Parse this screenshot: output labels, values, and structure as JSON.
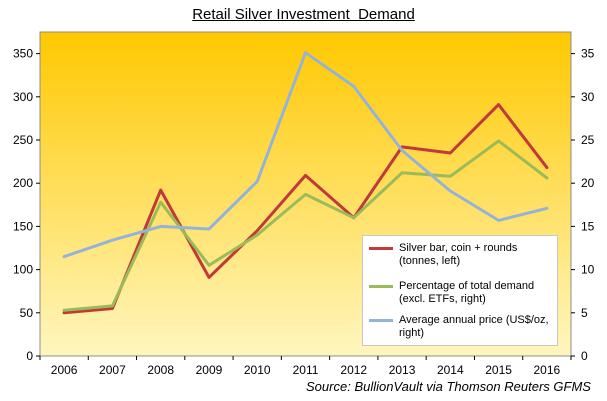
{
  "source": {
    "label": "Source:",
    "text": "BullionVault via Thomson Reuters GFMS"
  },
  "colors": {
    "bg_top": "#ffc800",
    "bg_bottom": "#fff6bf",
    "plot_border": "#8c8c8c"
  },
  "chart_data": {
    "type": "line",
    "title": "Retail Silver Investment  Demand",
    "categories": [
      "2006",
      "2007",
      "2008",
      "2009",
      "2010",
      "2011",
      "2012",
      "2013",
      "2014",
      "2015",
      "2016"
    ],
    "y_left": {
      "ylim": [
        0,
        375
      ],
      "ticks": [
        0,
        50,
        100,
        150,
        200,
        250,
        300,
        350
      ]
    },
    "y_right": {
      "ylim": [
        0,
        37.5
      ],
      "ticks": [
        0,
        5,
        10,
        15,
        20,
        25,
        30,
        35
      ]
    },
    "grid": false,
    "legend_position": "bottom-right",
    "series": [
      {
        "name": "Silver bar, coin + rounds (tonnes, left)",
        "axis": "left",
        "color": "#c0393b",
        "values": [
          50,
          55,
          192,
          91,
          145,
          209,
          160,
          242,
          235,
          291,
          218
        ]
      },
      {
        "name": "Percentage of total demand (excl. ETFs, right)",
        "axis": "right",
        "color": "#9bbb59",
        "values": [
          5.3,
          5.8,
          17.8,
          10.5,
          14.0,
          18.7,
          16.0,
          21.2,
          20.8,
          24.9,
          20.6
        ]
      },
      {
        "name": "Average annual price (US$/oz, right)",
        "axis": "right",
        "color": "#95b3d7",
        "values": [
          11.5,
          13.4,
          15.0,
          14.7,
          20.2,
          35.1,
          31.2,
          23.8,
          19.1,
          15.7,
          17.1
        ]
      }
    ]
  }
}
